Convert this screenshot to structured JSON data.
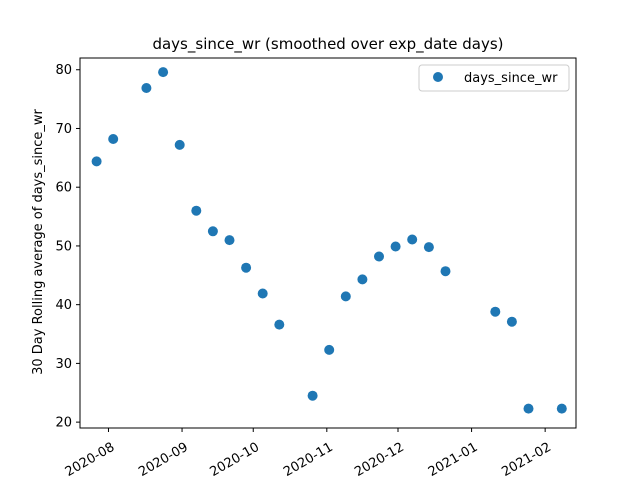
{
  "chart_data": {
    "type": "scatter",
    "title": "days_since_wr (smoothed over exp_date days)",
    "xlabel": "",
    "ylabel": "30 Day Rolling average of days_since_wr",
    "x_type": "date",
    "xlim": [
      "2020-07-20",
      "2021-02-14"
    ],
    "ylim": [
      19,
      82
    ],
    "x_ticks": [
      "2020-08-01",
      "2020-09-01",
      "2020-10-01",
      "2020-11-01",
      "2020-12-01",
      "2021-01-01",
      "2021-02-01"
    ],
    "x_tick_labels": [
      "2020-08",
      "2020-09",
      "2020-10",
      "2020-11",
      "2020-12",
      "2021-01",
      "2021-02"
    ],
    "y_ticks": [
      20,
      30,
      40,
      50,
      60,
      70,
      80
    ],
    "y_tick_labels": [
      "20",
      "30",
      "40",
      "50",
      "60",
      "70",
      "80"
    ],
    "grid": false,
    "legend": {
      "position": "top-right"
    },
    "series": [
      {
        "name": "days_since_wr",
        "color": "#1f77b4",
        "marker": "circle",
        "points": [
          {
            "x": "2020-07-27",
            "y": 64.4
          },
          {
            "x": "2020-08-03",
            "y": 68.2
          },
          {
            "x": "2020-08-17",
            "y": 76.9
          },
          {
            "x": "2020-08-24",
            "y": 79.6
          },
          {
            "x": "2020-08-31",
            "y": 67.2
          },
          {
            "x": "2020-09-07",
            "y": 56.0
          },
          {
            "x": "2020-09-14",
            "y": 52.5
          },
          {
            "x": "2020-09-21",
            "y": 51.0
          },
          {
            "x": "2020-09-28",
            "y": 46.3
          },
          {
            "x": "2020-10-05",
            "y": 41.9
          },
          {
            "x": "2020-10-12",
            "y": 36.6
          },
          {
            "x": "2020-10-26",
            "y": 24.5
          },
          {
            "x": "2020-11-02",
            "y": 32.3
          },
          {
            "x": "2020-11-09",
            "y": 41.4
          },
          {
            "x": "2020-11-16",
            "y": 44.3
          },
          {
            "x": "2020-11-23",
            "y": 48.2
          },
          {
            "x": "2020-11-30",
            "y": 49.9
          },
          {
            "x": "2020-12-07",
            "y": 51.1
          },
          {
            "x": "2020-12-14",
            "y": 49.8
          },
          {
            "x": "2020-12-21",
            "y": 45.7
          },
          {
            "x": "2021-01-11",
            "y": 38.8
          },
          {
            "x": "2021-01-18",
            "y": 37.1
          },
          {
            "x": "2021-01-25",
            "y": 22.3
          },
          {
            "x": "2021-02-08",
            "y": 22.3
          }
        ]
      }
    ]
  }
}
